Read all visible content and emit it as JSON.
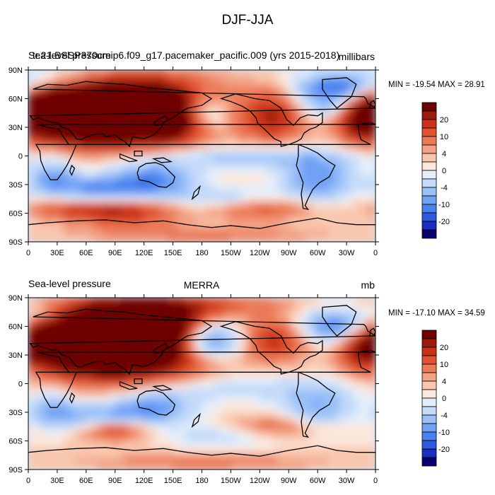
{
  "figure": {
    "title": "DJF-JJA",
    "colors": {
      "levels": [
        "#08006e",
        "#1a2cc2",
        "#2f5be0",
        "#4a80ef",
        "#6fa1f5",
        "#9ac0f8",
        "#c3daf9",
        "#e4eefb",
        "#fbe7dc",
        "#f9c7ae",
        "#f3a285",
        "#ec7a58",
        "#e0522f",
        "#c93219",
        "#9b1a0c",
        "#6e0004"
      ]
    },
    "panels": [
      {
        "left_title": "Sea-level pressure",
        "left_title_overlap": "tr.21.BSSP370cmip6.f09_g17.pacemaker_pacific.009 (yrs 2015-2018)",
        "center_title": "",
        "right_title": "millibars",
        "min_max": "MIN = -19.54 MAX =  28.91"
      },
      {
        "left_title": "Sea-level pressure",
        "left_title_overlap": "",
        "center_title": "MERRA",
        "right_title": "mb",
        "min_max": "MIN = -17.10 MAX =  34.59"
      }
    ],
    "axes": {
      "lon_labels": [
        "0",
        "30E",
        "60E",
        "90E",
        "120E",
        "150E",
        "180",
        "150W",
        "120W",
        "90W",
        "60W",
        "30W",
        "0"
      ],
      "lat_labels": [
        "90N",
        "60N",
        "30N",
        "0",
        "30S",
        "60S",
        "90S"
      ]
    },
    "colorbar": {
      "labels": [
        "20",
        "10",
        "4",
        "0",
        "-4",
        "-10",
        "-20"
      ]
    }
  },
  "chart_data": [
    {
      "type": "heatmap",
      "title": "DJF-JJA",
      "left_title": "Sea-level pressure",
      "right_title": "millibars",
      "min": -19.54,
      "max": 28.91,
      "x_range": [
        0,
        360
      ],
      "y_range": [
        -90,
        90
      ],
      "contour_levels": [
        -20,
        -15,
        -10,
        -8,
        -6,
        -4,
        -2,
        -1,
        0,
        1,
        2,
        4,
        6,
        8,
        10,
        15,
        20
      ],
      "blobs": [
        {
          "lon": 100,
          "lat": 48,
          "w": 60,
          "h": 22,
          "v": 24
        },
        {
          "lon": 60,
          "lat": 45,
          "w": 45,
          "h": 20,
          "v": 12
        },
        {
          "lon": 20,
          "lat": 50,
          "w": 30,
          "h": 15,
          "v": 8
        },
        {
          "lon": 150,
          "lat": 35,
          "w": 20,
          "h": 15,
          "v": 6
        },
        {
          "lon": 180,
          "lat": 45,
          "w": 22,
          "h": 14,
          "v": -10
        },
        {
          "lon": 255,
          "lat": 42,
          "w": 22,
          "h": 18,
          "v": 8
        },
        {
          "lon": 345,
          "lat": 35,
          "w": 15,
          "h": 15,
          "v": 8
        },
        {
          "lon": 40,
          "lat": 78,
          "w": 40,
          "h": 10,
          "v": -6
        },
        {
          "lon": 320,
          "lat": 72,
          "w": 30,
          "h": 10,
          "v": -10
        },
        {
          "lon": 310,
          "lat": 52,
          "w": 25,
          "h": 10,
          "v": -6
        },
        {
          "lon": 230,
          "lat": -2,
          "w": 80,
          "h": 8,
          "v": -5
        },
        {
          "lon": 130,
          "lat": -25,
          "w": 30,
          "h": 12,
          "v": -8
        },
        {
          "lon": 25,
          "lat": -20,
          "w": 15,
          "h": 12,
          "v": -6
        },
        {
          "lon": 300,
          "lat": -25,
          "w": 25,
          "h": 15,
          "v": -8
        },
        {
          "lon": 70,
          "lat": -35,
          "w": 40,
          "h": 10,
          "v": -8
        },
        {
          "lon": 100,
          "lat": -58,
          "w": 35,
          "h": 10,
          "v": 8
        },
        {
          "lon": 40,
          "lat": -55,
          "w": 30,
          "h": 8,
          "v": 5
        },
        {
          "lon": 240,
          "lat": -55,
          "w": 40,
          "h": 8,
          "v": 5
        },
        {
          "lon": 200,
          "lat": -45,
          "w": 40,
          "h": 8,
          "v": -4
        },
        {
          "lon": 180,
          "lat": -82,
          "w": 90,
          "h": 6,
          "v": 3
        }
      ]
    },
    {
      "type": "heatmap",
      "title": "MERRA",
      "left_title": "Sea-level pressure",
      "right_title": "mb",
      "min": -17.1,
      "max": 34.59,
      "x_range": [
        0,
        360
      ],
      "y_range": [
        -90,
        90
      ],
      "contour_levels": [
        -20,
        -15,
        -10,
        -8,
        -6,
        -4,
        -2,
        -1,
        0,
        1,
        2,
        4,
        6,
        8,
        10,
        15,
        20
      ],
      "blobs": [
        {
          "lon": 95,
          "lat": 42,
          "w": 55,
          "h": 24,
          "v": 26
        },
        {
          "lon": 50,
          "lat": 50,
          "w": 40,
          "h": 18,
          "v": 14
        },
        {
          "lon": 130,
          "lat": 60,
          "w": 30,
          "h": 15,
          "v": 10
        },
        {
          "lon": 150,
          "lat": 82,
          "w": 70,
          "h": 8,
          "v": 6
        },
        {
          "lon": 185,
          "lat": 45,
          "w": 25,
          "h": 13,
          "v": -13
        },
        {
          "lon": 255,
          "lat": 45,
          "w": 22,
          "h": 15,
          "v": 7
        },
        {
          "lon": 345,
          "lat": 35,
          "w": 15,
          "h": 15,
          "v": 6
        },
        {
          "lon": 20,
          "lat": 72,
          "w": 25,
          "h": 10,
          "v": -6
        },
        {
          "lon": 320,
          "lat": 60,
          "w": 25,
          "h": 12,
          "v": -10
        },
        {
          "lon": 220,
          "lat": -5,
          "w": 80,
          "h": 10,
          "v": -3
        },
        {
          "lon": 130,
          "lat": -25,
          "w": 30,
          "h": 12,
          "v": -7
        },
        {
          "lon": 25,
          "lat": -25,
          "w": 15,
          "h": 12,
          "v": -5
        },
        {
          "lon": 300,
          "lat": -25,
          "w": 25,
          "h": 15,
          "v": -6
        },
        {
          "lon": 70,
          "lat": -35,
          "w": 40,
          "h": 10,
          "v": -6
        },
        {
          "lon": 90,
          "lat": -48,
          "w": 25,
          "h": 8,
          "v": 7
        },
        {
          "lon": 260,
          "lat": -45,
          "w": 35,
          "h": 8,
          "v": 4
        },
        {
          "lon": 200,
          "lat": -55,
          "w": 40,
          "h": 8,
          "v": -3
        },
        {
          "lon": 180,
          "lat": -82,
          "w": 90,
          "h": 6,
          "v": 3
        }
      ]
    }
  ]
}
